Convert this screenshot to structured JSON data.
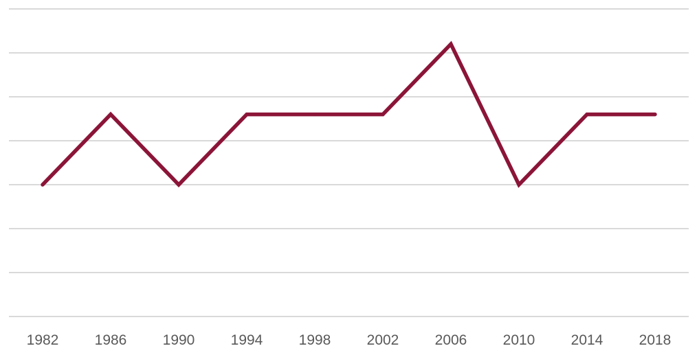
{
  "chart_data": {
    "type": "line",
    "categories": [
      "1982",
      "1986",
      "1990",
      "1994",
      "1998",
      "2002",
      "2006",
      "2010",
      "2014",
      "2018"
    ],
    "series": [
      {
        "values": [
          3.0,
          4.6,
          3.0,
          4.6,
          4.6,
          4.6,
          6.2,
          3.0,
          4.6,
          4.6
        ],
        "color": "#8b1538"
      }
    ],
    "ylim": [
      0,
      7
    ],
    "grid": true,
    "legend": "none",
    "title": "",
    "xlabel": "",
    "ylabel": ""
  }
}
